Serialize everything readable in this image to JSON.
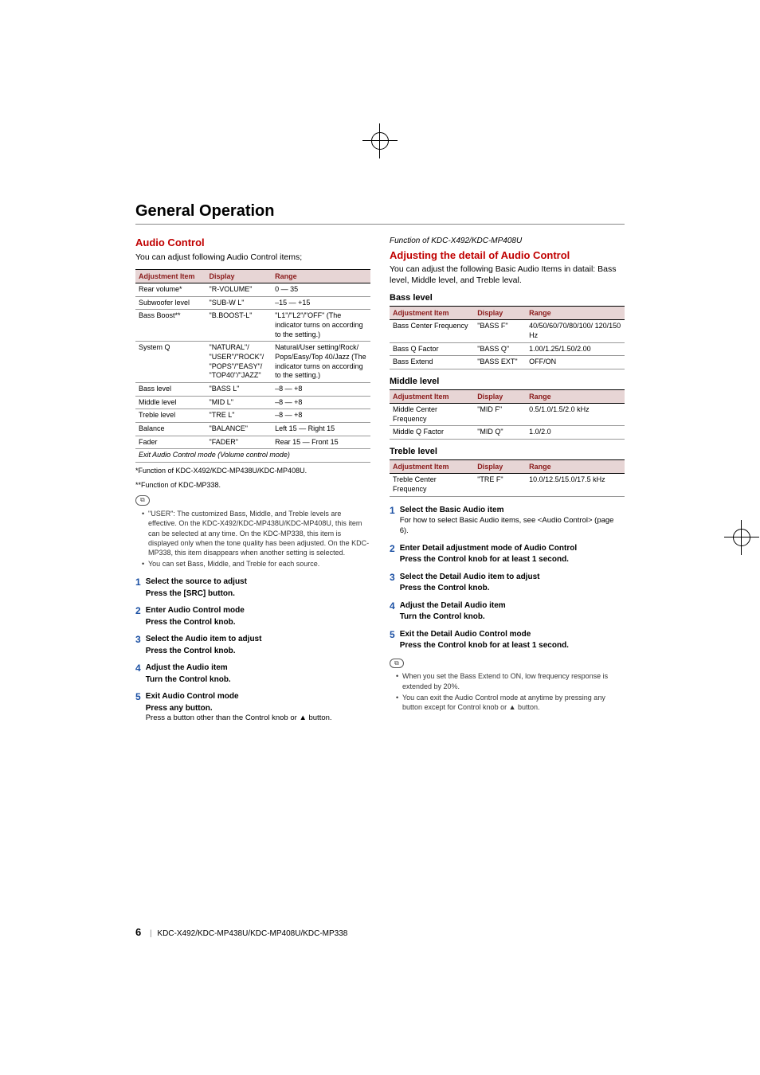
{
  "section_title": "General Operation",
  "left": {
    "heading": "Audio Control",
    "lead": "You can adjust following Audio Control items;",
    "table": {
      "headers": [
        "Adjustment Item",
        "Display",
        "Range"
      ],
      "col_widths": [
        "30%",
        "28%",
        "42%"
      ],
      "rows": [
        [
          "Rear volume*",
          "\"R-VOLUME\"",
          "0 — 35"
        ],
        [
          "Subwoofer level",
          "\"SUB-W L\"",
          "–15 — +15"
        ],
        [
          "Bass Boost**",
          "\"B.BOOST-L\"",
          "\"L1\"/\"L2\"/\"OFF\" (The indicator turns on according to the setting.)"
        ],
        [
          "System Q",
          "\"NATURAL\"/ \"USER\"/\"ROCK\"/ \"POPS\"/\"EASY\"/ \"TOP40\"/\"JAZZ\"",
          "Natural/User setting/Rock/ Pops/Easy/Top 40/Jazz (The indicator turns on according to the setting.)"
        ],
        [
          "Bass level",
          "\"BASS L\"",
          "–8 — +8"
        ],
        [
          "Middle level",
          "\"MID L\"",
          "–8 — +8"
        ],
        [
          "Treble level",
          "\"TRE L\"",
          "–8 — +8"
        ],
        [
          "Balance",
          "\"BALANCE\"",
          "Left 15 — Right 15"
        ],
        [
          "Fader",
          "\"FADER\"",
          "Rear 15 — Front 15"
        ]
      ],
      "last_row": "Exit Audio Control mode  (Volume control mode)"
    },
    "footnote1": "*Function of KDC-X492/KDC-MP438U/KDC-MP408U.",
    "footnote2": "**Function of KDC-MP338.",
    "notes": [
      "\"USER\": The customized Bass, Middle, and Treble levels are effective. On the KDC-X492/KDC-MP438U/KDC-MP408U, this item can be selected at any time. On the KDC-MP338, this item is displayed only when the tone quality has been adjusted. On the KDC-MP338, this item disappears when another setting is selected.",
      "You can set Bass, Middle, and Treble for each source."
    ],
    "steps": [
      {
        "n": "1",
        "title": "Select the source to adjust",
        "action": "Press the [SRC] button."
      },
      {
        "n": "2",
        "title": "Enter Audio Control mode",
        "action": "Press the Control knob."
      },
      {
        "n": "3",
        "title": "Select the Audio item to adjust",
        "action": "Press the Control knob."
      },
      {
        "n": "4",
        "title": "Adjust the Audio item",
        "action": "Turn the Control knob."
      },
      {
        "n": "5",
        "title": "Exit Audio Control mode",
        "action": "Press any button.",
        "note": "Press a button other than the Control knob or ▲ button."
      }
    ]
  },
  "right": {
    "func_line": "Function of KDC-X492/KDC-MP408U",
    "heading": "Adjusting the detail of Audio Control",
    "lead": "You can adjust the following Basic Audio Items in datail: Bass level, Middle level, and Treble leval.",
    "groups": [
      {
        "title": "Bass level",
        "headers": [
          "Adjustment Item",
          "Display",
          "Range"
        ],
        "rows": [
          [
            "Bass Center Frequency",
            "\"BASS F\"",
            "40/50/60/70/80/100/ 120/150 Hz"
          ],
          [
            "Bass Q Factor",
            "\"BASS Q\"",
            "1.00/1.25/1.50/2.00"
          ],
          [
            "Bass Extend",
            "\"BASS EXT\"",
            "OFF/ON"
          ]
        ]
      },
      {
        "title": "Middle level",
        "headers": [
          "Adjustment Item",
          "Display",
          "Range"
        ],
        "rows": [
          [
            "Middle Center Frequency",
            "\"MID  F\"",
            "0.5/1.0/1.5/2.0 kHz"
          ],
          [
            "Middle Q Factor",
            "\"MID  Q\"",
            "1.0/2.0"
          ]
        ]
      },
      {
        "title": "Treble level",
        "headers": [
          "Adjustment Item",
          "Display",
          "Range"
        ],
        "rows": [
          [
            "Treble Center Frequency",
            "\"TRE  F\"",
            "10.0/12.5/15.0/17.5 kHz"
          ]
        ]
      }
    ],
    "steps": [
      {
        "n": "1",
        "title": "Select the Basic Audio item",
        "note": "For how to select Basic Audio items, see <Audio Control> (page 6)."
      },
      {
        "n": "2",
        "title": "Enter Detail adjustment mode of Audio Control",
        "action": "Press the Control knob for at least 1 second."
      },
      {
        "n": "3",
        "title": "Select the Detail Audio item to adjust",
        "action": "Press the Control knob."
      },
      {
        "n": "4",
        "title": "Adjust the Detail Audio item",
        "action": "Turn the Control knob."
      },
      {
        "n": "5",
        "title": "Exit the Detail Audio Control mode",
        "action": "Press the Control knob for at least 1 second."
      }
    ],
    "notes": [
      "When you set the Bass Extend to ON, low frequency response is extended by 20%.",
      "You can exit the Audio Control mode at anytime by pressing any button except for Control knob or ▲ button."
    ]
  },
  "footer": {
    "page": "6",
    "models": "KDC-X492/KDC-MP438U/KDC-MP408U/KDC-MP338"
  }
}
